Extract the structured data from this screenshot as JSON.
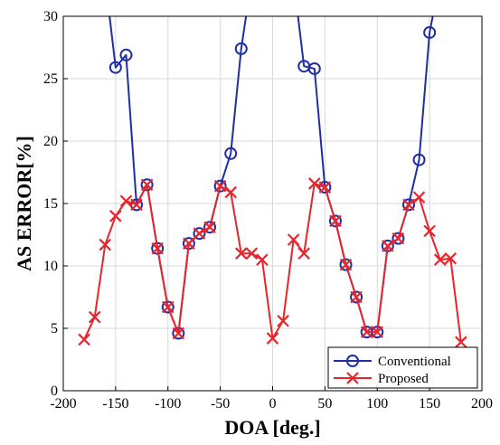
{
  "chart_data": {
    "type": "line",
    "xlabel": "DOA [deg.]",
    "ylabel": "AS ERROR[%]",
    "xlim": [
      -200,
      200
    ],
    "ylim": [
      0,
      30
    ],
    "xticks": [
      -200,
      -150,
      -100,
      -50,
      0,
      50,
      100,
      150,
      200
    ],
    "yticks": [
      0,
      5,
      10,
      15,
      20,
      25,
      30
    ],
    "grid": true,
    "legend_position": "bottom-right",
    "series": [
      {
        "name": "Conventional",
        "color": "#1f2fa3",
        "marker": "circle",
        "x": [
          -160,
          -150,
          -140,
          -130,
          -120,
          -110,
          -100,
          -90,
          -80,
          -70,
          -60,
          -50,
          -40,
          -30,
          -20,
          20,
          30,
          40,
          50,
          60,
          70,
          80,
          90,
          100,
          110,
          120,
          130,
          140,
          150,
          160
        ],
        "y": [
          33,
          25.9,
          26.9,
          14.9,
          16.5,
          11.4,
          6.7,
          4.6,
          11.8,
          12.6,
          13.1,
          16.4,
          19.0,
          27.4,
          33,
          33,
          26.0,
          25.8,
          16.3,
          13.6,
          10.1,
          7.5,
          4.7,
          4.7,
          11.6,
          12.2,
          14.9,
          18.5,
          28.7,
          33
        ]
      },
      {
        "name": "Proposed",
        "color": "#e8242c",
        "marker": "x",
        "x": [
          -180,
          -170,
          -160,
          -150,
          -140,
          -130,
          -120,
          -110,
          -100,
          -90,
          -80,
          -70,
          -60,
          -50,
          -40,
          -30,
          -20,
          -10,
          0,
          10,
          20,
          30,
          40,
          50,
          60,
          70,
          80,
          90,
          100,
          110,
          120,
          130,
          140,
          150,
          160,
          170,
          180
        ],
        "y": [
          4.1,
          5.9,
          11.7,
          14.0,
          15.2,
          14.9,
          16.5,
          11.4,
          6.7,
          4.6,
          11.8,
          12.6,
          13.1,
          16.4,
          15.9,
          11.0,
          11.0,
          10.5,
          4.2,
          5.6,
          12.1,
          11.0,
          16.6,
          16.3,
          13.6,
          10.1,
          7.5,
          4.7,
          4.7,
          11.6,
          12.2,
          14.9,
          15.5,
          12.8,
          10.5,
          10.6,
          3.9
        ]
      }
    ]
  }
}
